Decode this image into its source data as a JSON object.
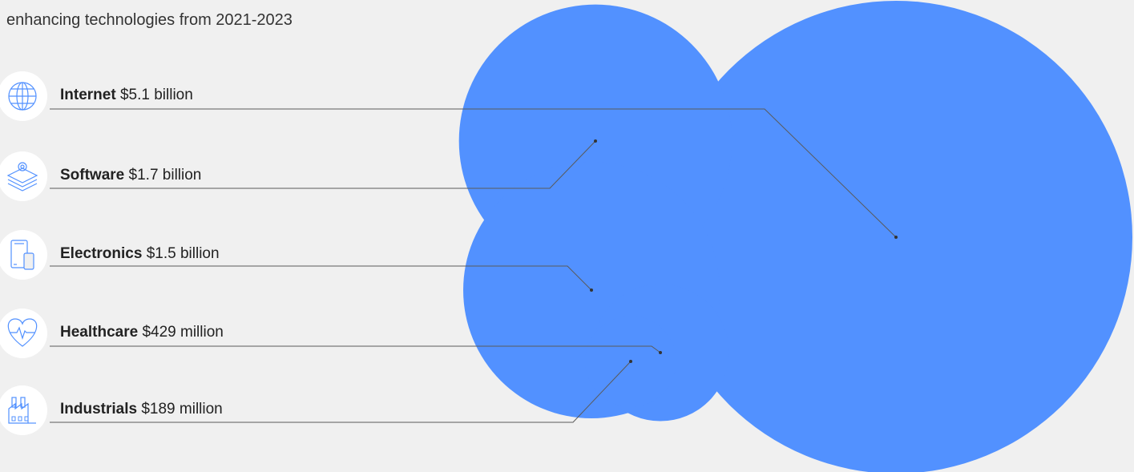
{
  "intro_text": "enhancing technologies from 2021-2023",
  "chart_data": {
    "type": "bubble",
    "title": "",
    "accent_color": "#5291ff",
    "leader_color": "#5a5a5a",
    "series": [
      {
        "name": "Internet",
        "label": "Internet",
        "value_label": "$5.1 billion",
        "value": 5100,
        "icon": "globe-icon"
      },
      {
        "name": "Software",
        "label": "Software",
        "value_label": "$1.7 billion",
        "value": 1700,
        "icon": "layers-gear-icon"
      },
      {
        "name": "Electronics",
        "label": "Electronics",
        "value_label": "$1.5 billion",
        "value": 1500,
        "icon": "devices-icon"
      },
      {
        "name": "Healthcare",
        "label": "Healthcare",
        "value_label": "$429 million",
        "value": 429,
        "icon": "heart-pulse-icon"
      },
      {
        "name": "Industrials",
        "label": "Industrials",
        "value_label": "$189 million",
        "value": 189,
        "icon": "factory-icon"
      }
    ],
    "unit": "USD millions"
  }
}
